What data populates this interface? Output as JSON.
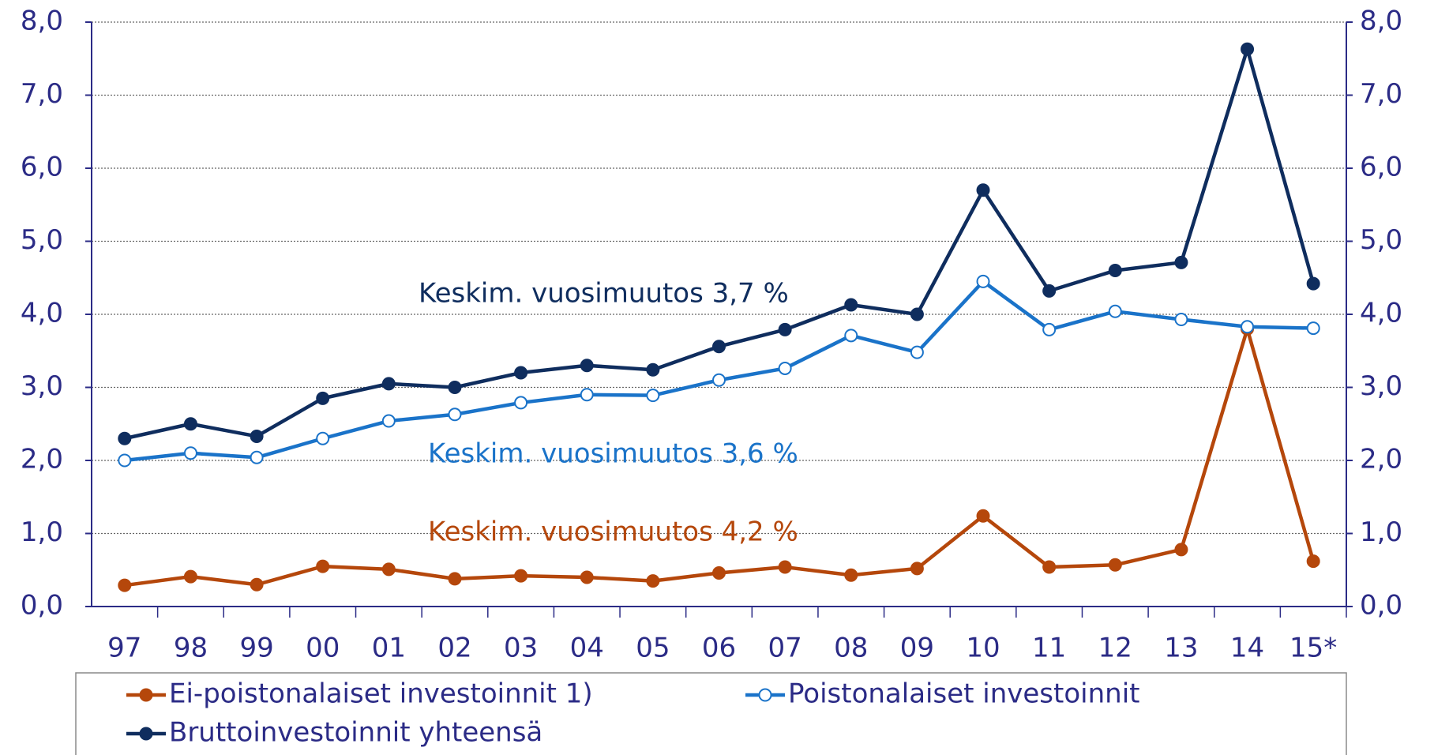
{
  "chart_data": {
    "type": "line",
    "categories": [
      "97",
      "98",
      "99",
      "00",
      "01",
      "02",
      "03",
      "04",
      "05",
      "06",
      "07",
      "08",
      "09",
      "10",
      "11",
      "12",
      "13",
      "14",
      "15*"
    ],
    "series": [
      {
        "name": "Ei-poistonalaiset investoinnit 1)",
        "color": "#b5470b",
        "marker": "filled",
        "values": [
          0.29,
          0.41,
          0.3,
          0.55,
          0.51,
          0.38,
          0.42,
          0.4,
          0.35,
          0.46,
          0.54,
          0.43,
          0.52,
          1.24,
          0.54,
          0.57,
          0.78,
          3.8,
          0.62
        ]
      },
      {
        "name": "Poistonalaiset investoinnit",
        "color": "#1a73c9",
        "marker": "hollow",
        "values": [
          2.0,
          2.1,
          2.04,
          2.3,
          2.54,
          2.63,
          2.79,
          2.9,
          2.89,
          3.1,
          3.26,
          3.71,
          3.48,
          4.45,
          3.79,
          4.04,
          3.93,
          3.83,
          3.81
        ]
      },
      {
        "name": "Bruttoinvestoinnit yhteensä",
        "color": "#0f2d5e",
        "marker": "filled",
        "values": [
          2.3,
          2.5,
          2.33,
          2.85,
          3.05,
          3.0,
          3.2,
          3.3,
          3.24,
          3.56,
          3.79,
          4.13,
          4.0,
          5.7,
          4.32,
          4.6,
          4.71,
          7.63,
          4.42
        ]
      }
    ],
    "ylim": [
      0,
      8
    ],
    "yticks": [
      {
        "value": 0,
        "label": "0,0"
      },
      {
        "value": 1,
        "label": "1,0"
      },
      {
        "value": 2,
        "label": "2,0"
      },
      {
        "value": 3,
        "label": "3,0"
      },
      {
        "value": 4,
        "label": "4,0"
      },
      {
        "value": 5,
        "label": "5,0"
      },
      {
        "value": 6,
        "label": "6,0"
      },
      {
        "value": 7,
        "label": "7,0"
      },
      {
        "value": 8,
        "label": "8,0"
      }
    ],
    "y2lim": [
      0,
      8
    ],
    "y2ticks": [
      {
        "value": 0,
        "label": "0,0"
      },
      {
        "value": 1,
        "label": "1,0"
      },
      {
        "value": 2,
        "label": "2,0"
      },
      {
        "value": 3,
        "label": "3,0"
      },
      {
        "value": 4,
        "label": "4,0"
      },
      {
        "value": 5,
        "label": "5,0"
      },
      {
        "value": 6,
        "label": "6,0"
      },
      {
        "value": 7,
        "label": "7,0"
      },
      {
        "value": 8,
        "label": "8,0"
      }
    ],
    "grid": true,
    "annotations": [
      {
        "text": "Keskim. vuosimuutos 3,7 %",
        "color": "#0f2d5e"
      },
      {
        "text": "Keskim. vuosimuutos 3,6 %",
        "color": "#1a73c9"
      },
      {
        "text": "Keskim. vuosimuutos 4,2 %",
        "color": "#b5470b"
      }
    ]
  }
}
